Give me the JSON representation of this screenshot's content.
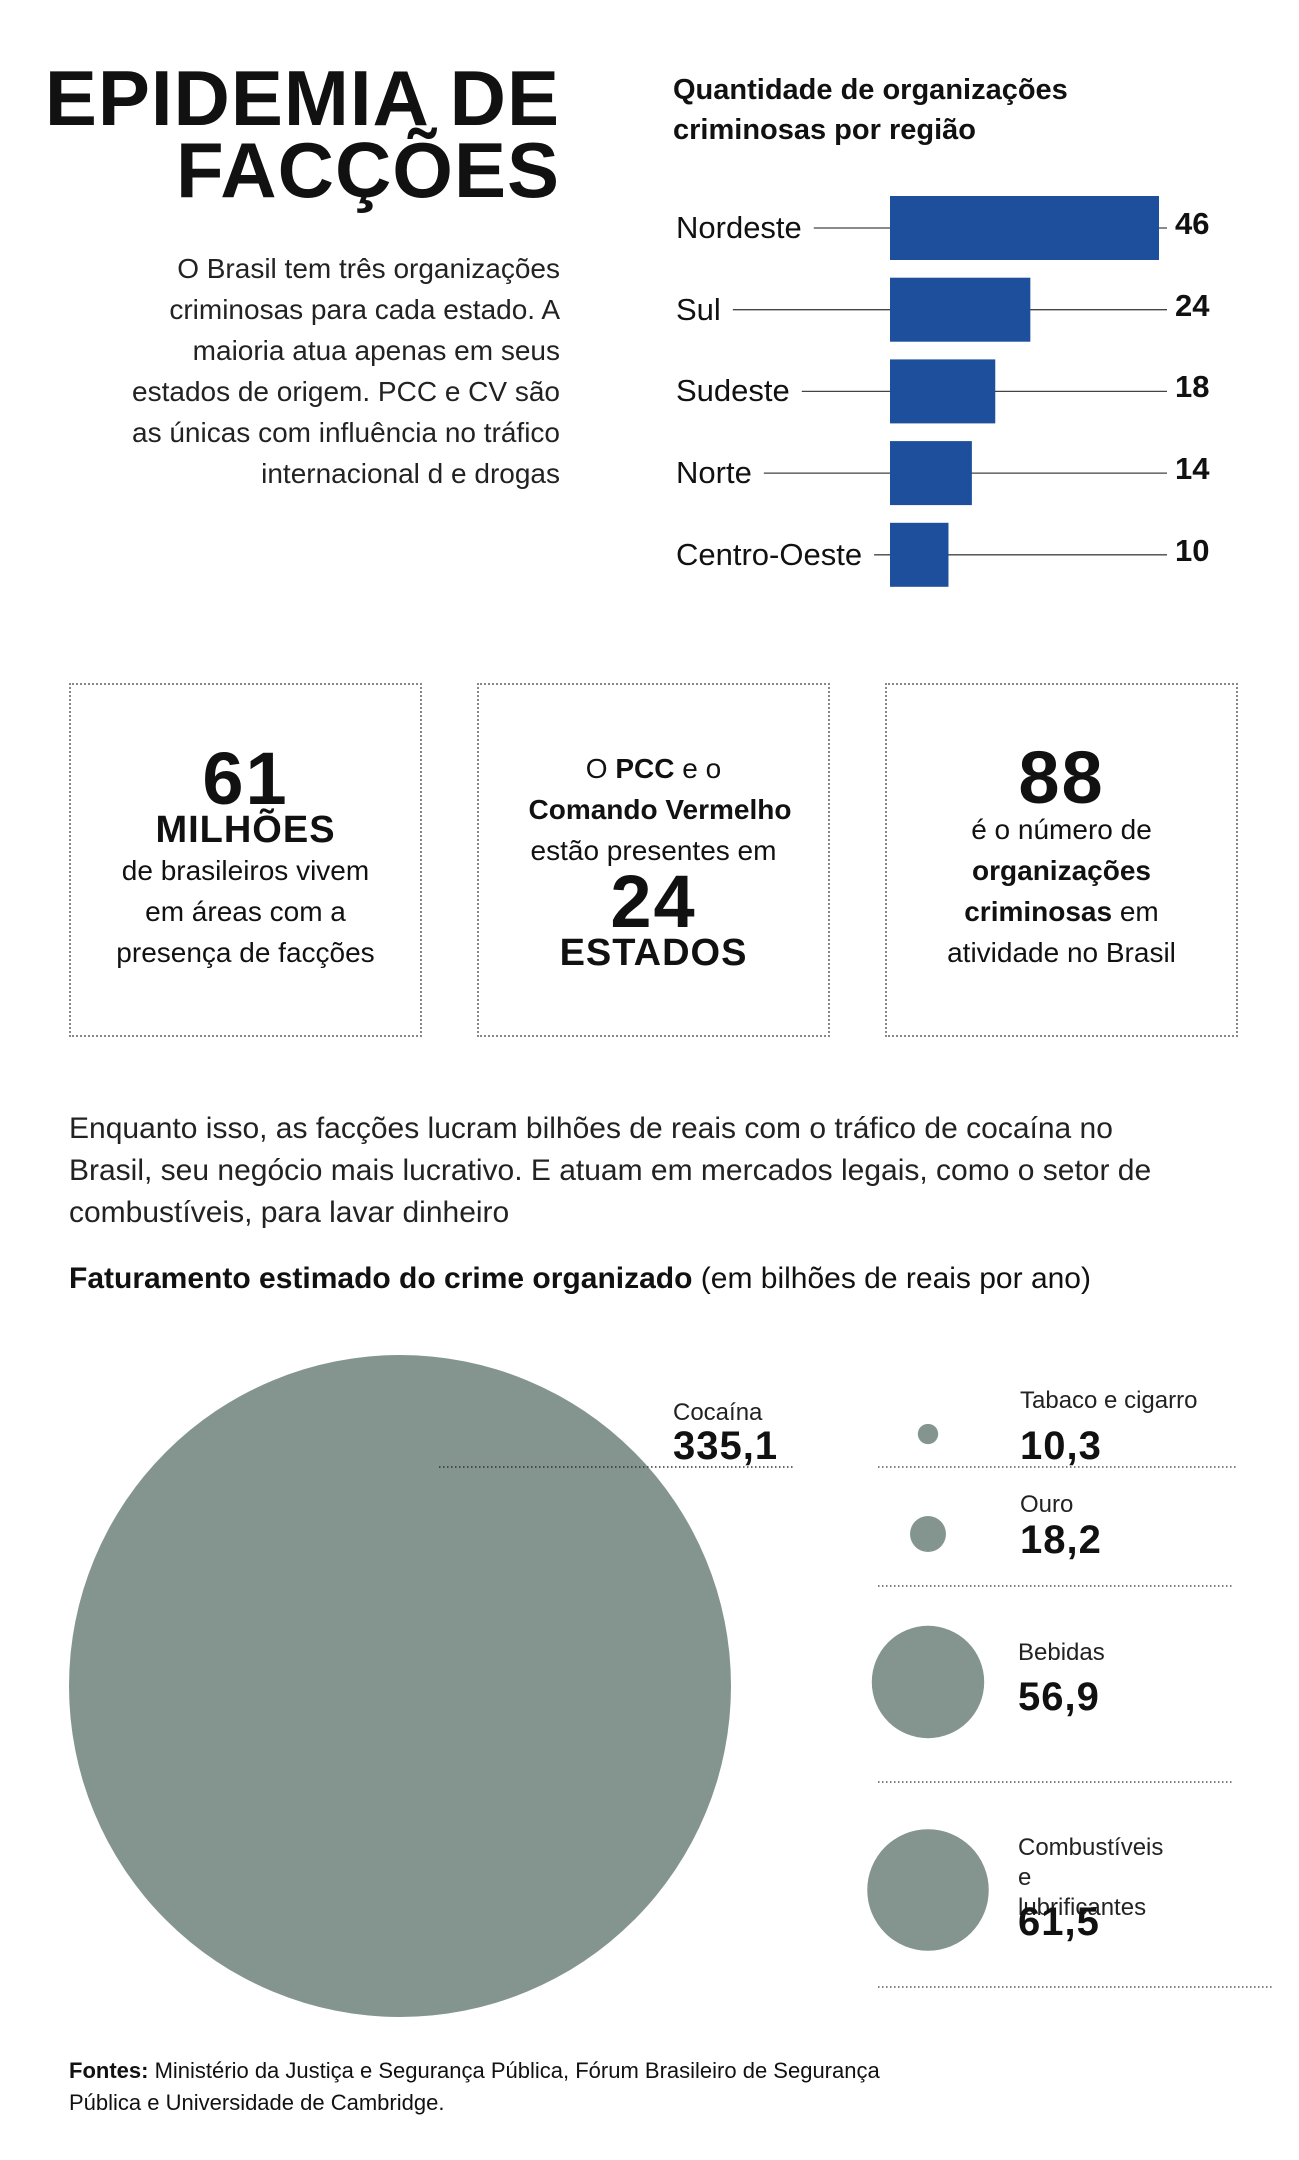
{
  "title": [
    "EPIDEMIA DE",
    "FACÇÕES"
  ],
  "intro": "O Brasil tem três organizações criminosas para cada estado. A maioria atua apenas em seus estados de origem. PCC e CV são as únicas com influência no tráfico internacional d e drogas",
  "stats": [
    {
      "number": "61",
      "unit": "MILHÕES",
      "text": "de brasileiros vivem em áreas com a presença de facções"
    },
    {
      "lead": "O",
      "bold1": "PCC",
      "mid": "e o",
      "bold2": "Comando Vermelho",
      "text": "estão presentes em",
      "number": "24",
      "unit": "ESTADOS"
    },
    {
      "number": "88",
      "text": "é o número de",
      "bold": "organizações criminosas",
      "tail": "em atividade no Brasil"
    }
  ],
  "paragraph": "Enquanto isso, as facções lucram bilhões de reais com o tráfico de cocaína no Brasil, seu negócio mais lucrativo. E atuam em mercados legais, como o setor de combustíveis, para lavar dinheiro",
  "chart_data": [
    {
      "type": "bar",
      "title": "Quantidade de organizações criminosas por região",
      "categories": [
        "Nordeste",
        "Sul",
        "Sudeste",
        "Norte",
        "Centro-Oeste"
      ],
      "values": [
        46,
        24,
        18,
        14,
        10
      ],
      "color": "#1d4f9c"
    },
    {
      "type": "bubble",
      "title": "Faturamento estimado do crime organizado",
      "subtitle": "(em bilhões de reais por ano)",
      "categories": [
        "Cocaína",
        "Tabaco e cigarro",
        "Ouro",
        "Bebidas",
        "Combustíveis e lubrificantes"
      ],
      "values": [
        335.1,
        10.3,
        18.2,
        56.9,
        61.5
      ],
      "value_labels": [
        "335,1",
        "10,3",
        "18,2",
        "56,9",
        "61,5"
      ],
      "color": "#83958e"
    }
  ],
  "footer": {
    "label": "Fontes:",
    "text": "Ministério da Justiça e Segurança Pública, Fórum Brasileiro de Segurança Pública e Universidade de Cambridge."
  }
}
